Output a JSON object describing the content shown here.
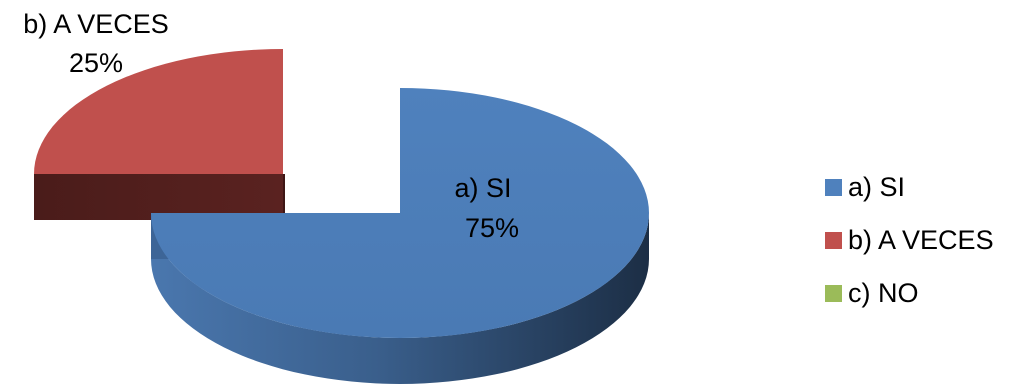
{
  "chart_data": {
    "type": "pie",
    "style": "3d-exploded",
    "categories": [
      "a) SI",
      "b) A VECES",
      "c) NO"
    ],
    "values": [
      75,
      25,
      0
    ],
    "unit": "%",
    "colors": [
      "#4F81BD",
      "#C0504D",
      "#9BBB59"
    ],
    "slice_labels": [
      {
        "name": "a) SI",
        "value": "75%"
      },
      {
        "name": "b) A VECES",
        "value": "25%"
      }
    ],
    "legend": {
      "position": "right",
      "entries": [
        "a) SI",
        "b) A VECES",
        "c) NO"
      ]
    }
  }
}
